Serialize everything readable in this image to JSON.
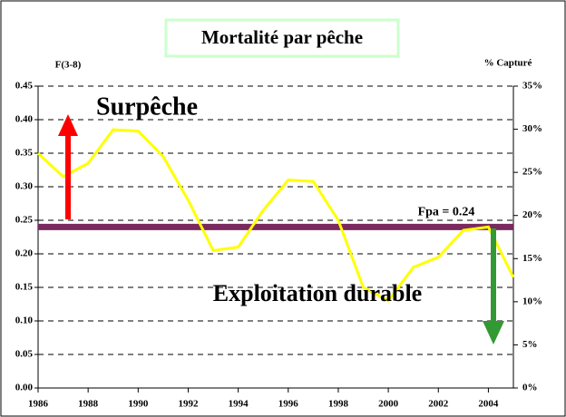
{
  "chart_data": {
    "type": "line",
    "title": "Mortalité par pêche",
    "y_label": "F(3-8)",
    "y2_label": "% Capturé",
    "x": [
      1986,
      1987,
      1988,
      1989,
      1990,
      1991,
      1992,
      1993,
      1994,
      1995,
      1996,
      1997,
      1998,
      1999,
      2000,
      2001,
      2002,
      2003,
      2004,
      2005
    ],
    "series": [
      {
        "color": "#ffff00",
        "values": [
          0.35,
          0.315,
          0.335,
          0.385,
          0.383,
          0.345,
          0.28,
          0.205,
          0.21,
          0.265,
          0.31,
          0.308,
          0.25,
          0.15,
          0.13,
          0.18,
          0.195,
          0.235,
          0.24,
          0.165
        ]
      }
    ],
    "xlim": [
      1986,
      2005
    ],
    "xticks": [
      1986,
      1988,
      1990,
      1992,
      1994,
      1996,
      1998,
      2000,
      2002,
      2004
    ],
    "ylim": [
      0,
      0.45
    ],
    "yticks": [
      {
        "value": 0,
        "label": "0.00"
      },
      {
        "value": 0.05,
        "label": "0.05"
      },
      {
        "value": 0.1,
        "label": "0.10"
      },
      {
        "value": 0.15,
        "label": "0.15"
      },
      {
        "value": 0.2,
        "label": "0.20"
      },
      {
        "value": 0.25,
        "label": "0.25"
      },
      {
        "value": 0.3,
        "label": "0.30"
      },
      {
        "value": 0.35,
        "label": "0.35"
      },
      {
        "value": 0.4,
        "label": "0.40"
      },
      {
        "value": 0.45,
        "label": "0.45"
      }
    ],
    "y2lim": [
      0,
      35
    ],
    "y2ticks": [
      {
        "value": 0,
        "label": "0%"
      },
      {
        "value": 5,
        "label": "5%"
      },
      {
        "value": 10,
        "label": "10%"
      },
      {
        "value": 15,
        "label": "15%"
      },
      {
        "value": 20,
        "label": "20%"
      },
      {
        "value": 25,
        "label": "25%"
      },
      {
        "value": 30,
        "label": "30%"
      },
      {
        "value": 35,
        "label": "35%"
      }
    ],
    "grid": true,
    "reference_line": {
      "value": 0.24,
      "label": "Fpa = 0.24",
      "color": "#7a2a5e"
    },
    "annotations": [
      "Surpêche",
      "Exploitation durable"
    ]
  }
}
